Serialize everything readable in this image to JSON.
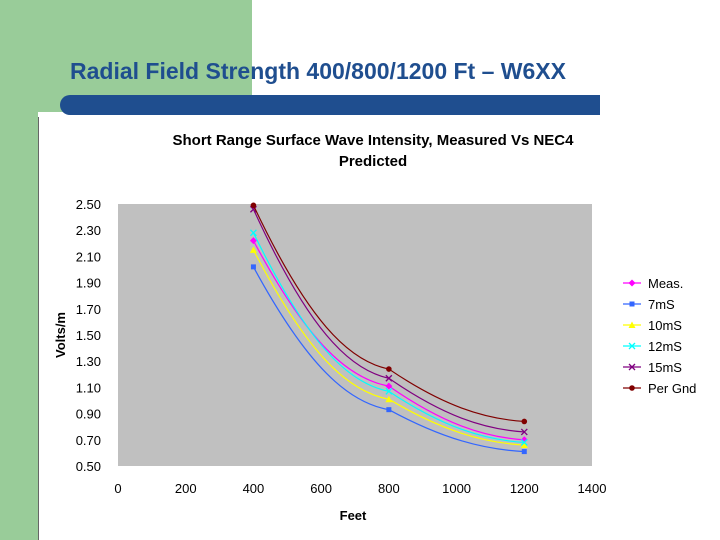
{
  "slide": {
    "title": "Radial Field Strength 400/800/1200 Ft – W6XX"
  },
  "colors": {
    "accent_green": "#99cc99",
    "title_blue": "#1f4e8f",
    "plot_bg": "#c0c0c0"
  },
  "chart_data": {
    "type": "line",
    "title_lines": [
      "Short Range Surface Wave Intensity, Measured Vs NEC4",
      "Predicted"
    ],
    "xlabel": "Feet",
    "ylabel": "Volts/m",
    "xlim": [
      0,
      1400
    ],
    "ylim": [
      0.5,
      2.5
    ],
    "x_ticks": [
      "0",
      "200",
      "400",
      "600",
      "800",
      "1000",
      "1200",
      "1400"
    ],
    "y_ticks": [
      "2.50",
      "2.30",
      "2.10",
      "1.90",
      "1.70",
      "1.50",
      "1.30",
      "1.10",
      "0.90",
      "0.70",
      "0.50"
    ],
    "x": [
      400,
      800,
      1200
    ],
    "series": [
      {
        "name": "Meas.",
        "values": [
          2.22,
          1.11,
          0.7
        ],
        "color": "#ff00ff",
        "marker": "diamond"
      },
      {
        "name": "7mS",
        "values": [
          2.02,
          0.93,
          0.61
        ],
        "color": "#3366ff",
        "marker": "square"
      },
      {
        "name": "10mS",
        "values": [
          2.15,
          1.01,
          0.66
        ],
        "color": "#ffff00",
        "marker": "triangle"
      },
      {
        "name": "12mS",
        "values": [
          2.28,
          1.07,
          0.68
        ],
        "color": "#00ffff",
        "marker": "x"
      },
      {
        "name": "15mS",
        "values": [
          2.46,
          1.17,
          0.76
        ],
        "color": "#800080",
        "marker": "x"
      },
      {
        "name": "Per Gnd",
        "values": [
          2.49,
          1.24,
          0.84
        ],
        "color": "#800000",
        "marker": "circle"
      }
    ]
  }
}
